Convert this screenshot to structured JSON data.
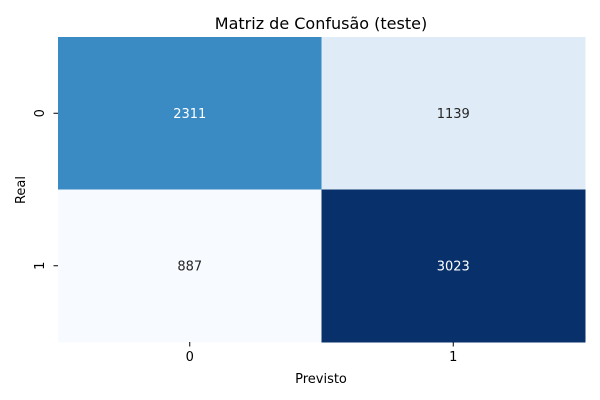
{
  "chart_data": {
    "type": "heatmap",
    "title": "Matriz de Confusão (teste)",
    "xlabel": "Previsto",
    "ylabel": "Real",
    "x_categories": [
      "0",
      "1"
    ],
    "y_categories": [
      "0",
      "1"
    ],
    "values": [
      [
        2311,
        1139
      ],
      [
        887,
        3023
      ]
    ],
    "colormap": "Blues",
    "cell_colors": [
      [
        "#3a8ac3",
        "#dfebf7"
      ],
      [
        "#f7fbff",
        "#08306b"
      ]
    ],
    "annotation_colors": [
      [
        "#ffffff",
        "#262626"
      ],
      [
        "#262626",
        "#ffffff"
      ]
    ],
    "colorbar": false,
    "grid": false
  }
}
